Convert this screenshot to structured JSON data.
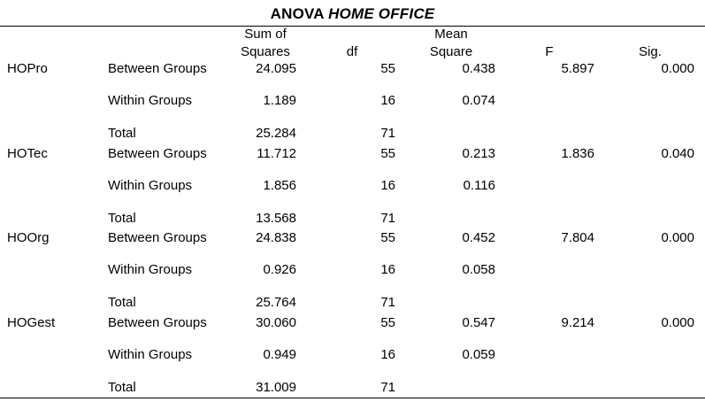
{
  "title": {
    "main": "ANOVA",
    "sub": "HOME OFFICE"
  },
  "headers": {
    "sum_of_squares_1": "Sum of",
    "sum_of_squares_2": "Squares",
    "df": "df",
    "mean_square_1": "Mean",
    "mean_square_2": "Square",
    "f": "F",
    "sig": "Sig."
  },
  "groups": [
    {
      "name": "HOPro",
      "rows": [
        {
          "label": "Between Groups",
          "ss": "24.095",
          "df": "55",
          "ms": "0.438",
          "f": "5.897",
          "sig": "0.000"
        },
        {
          "label": "Within Groups",
          "ss": "1.189",
          "df": "16",
          "ms": "0.074",
          "f": "",
          "sig": ""
        },
        {
          "label": "Total",
          "ss": "25.284",
          "df": "71",
          "ms": "",
          "f": "",
          "sig": ""
        }
      ]
    },
    {
      "name": "HOTec",
      "rows": [
        {
          "label": "Between Groups",
          "ss": "11.712",
          "df": "55",
          "ms": "0.213",
          "f": "1.836",
          "sig": "0.040"
        },
        {
          "label": "Within Groups",
          "ss": "1.856",
          "df": "16",
          "ms": "0.116",
          "f": "",
          "sig": ""
        },
        {
          "label": "Total",
          "ss": "13.568",
          "df": "71",
          "ms": "",
          "f": "",
          "sig": ""
        }
      ]
    },
    {
      "name": "HOOrg",
      "rows": [
        {
          "label": "Between Groups",
          "ss": "24.838",
          "df": "55",
          "ms": "0.452",
          "f": "7.804",
          "sig": "0.000"
        },
        {
          "label": "Within Groups",
          "ss": "0.926",
          "df": "16",
          "ms": "0.058",
          "f": "",
          "sig": ""
        },
        {
          "label": "Total",
          "ss": "25.764",
          "df": "71",
          "ms": "",
          "f": "",
          "sig": ""
        }
      ]
    },
    {
      "name": "HOGest",
      "rows": [
        {
          "label": "Between Groups",
          "ss": "30.060",
          "df": "55",
          "ms": "0.547",
          "f": "9.214",
          "sig": "0.000"
        },
        {
          "label": "Within Groups",
          "ss": "0.949",
          "df": "16",
          "ms": "0.059",
          "f": "",
          "sig": ""
        },
        {
          "label": "Total",
          "ss": "31.009",
          "df": "71",
          "ms": "",
          "f": "",
          "sig": ""
        }
      ]
    }
  ]
}
